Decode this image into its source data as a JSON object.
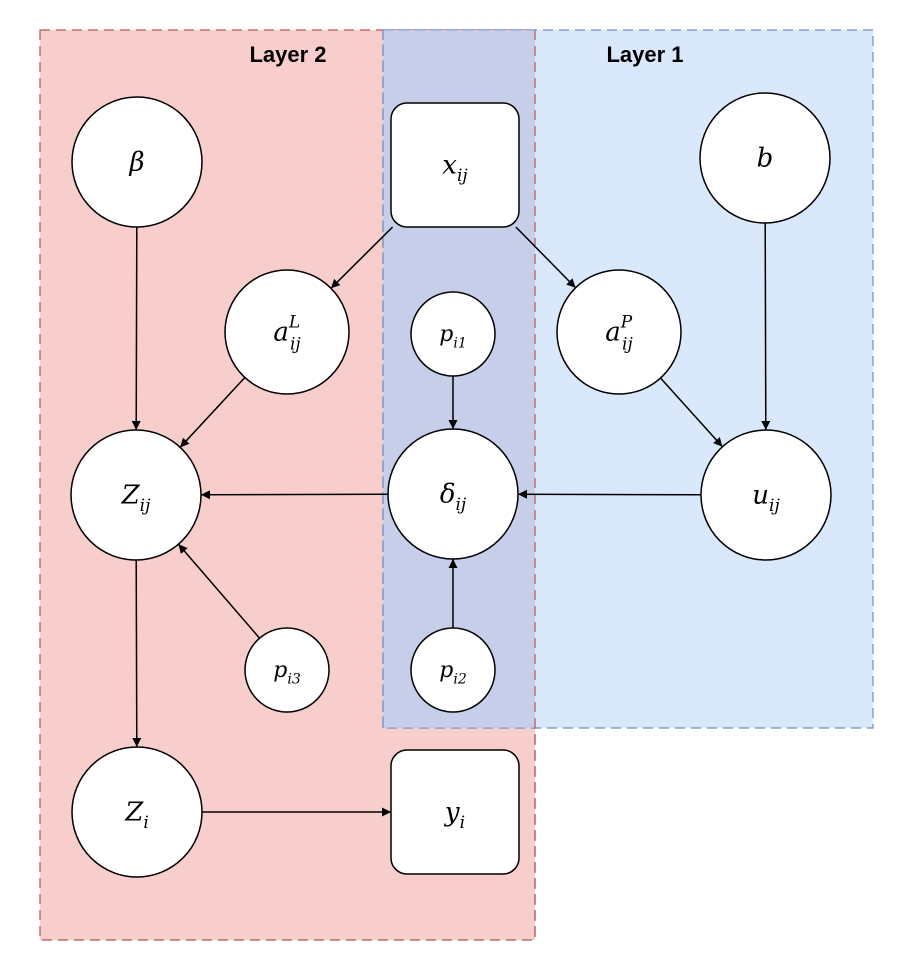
{
  "layers": {
    "layer2": {
      "title": "Layer 2",
      "fill": "#f8cecc",
      "stroke": "#b85450"
    },
    "layer1": {
      "title": "Layer 1",
      "fill": "#dae8fc",
      "stroke": "#6c8ebf"
    },
    "overlap_fill": "#b7b8d9"
  },
  "nodes": {
    "beta": {
      "base": "β",
      "sub": "",
      "sup": ""
    },
    "x_ij": {
      "base": "x",
      "sub": "ij",
      "sup": ""
    },
    "b": {
      "base": "b",
      "sub": "",
      "sup": ""
    },
    "a_L": {
      "base": "a",
      "sub": "ij",
      "sup": "L"
    },
    "p_i1": {
      "base": "p",
      "sub": "i1",
      "sup": ""
    },
    "a_P": {
      "base": "a",
      "sub": "ij",
      "sup": "P"
    },
    "Z_ij": {
      "base": "Z",
      "sub": "ij",
      "sup": ""
    },
    "delta": {
      "base": "δ",
      "sub": "ij",
      "sup": ""
    },
    "u_ij": {
      "base": "u",
      "sub": "ij",
      "sup": ""
    },
    "p_i3": {
      "base": "p",
      "sub": "i3",
      "sup": ""
    },
    "p_i2": {
      "base": "p",
      "sub": "i2",
      "sup": ""
    },
    "Z_i": {
      "base": "Z",
      "sub": "i",
      "sup": ""
    },
    "y_i": {
      "base": "y",
      "sub": "i",
      "sup": ""
    }
  },
  "edges": [
    [
      "x_ij",
      "a_L"
    ],
    [
      "x_ij",
      "a_P"
    ],
    [
      "beta",
      "Z_ij"
    ],
    [
      "a_L",
      "Z_ij"
    ],
    [
      "b",
      "u_ij"
    ],
    [
      "a_P",
      "u_ij"
    ],
    [
      "p_i1",
      "delta"
    ],
    [
      "p_i2",
      "delta"
    ],
    [
      "u_ij",
      "delta"
    ],
    [
      "delta",
      "Z_ij"
    ],
    [
      "p_i3",
      "Z_ij"
    ],
    [
      "Z_ij",
      "Z_i"
    ],
    [
      "Z_i",
      "y_i"
    ]
  ]
}
